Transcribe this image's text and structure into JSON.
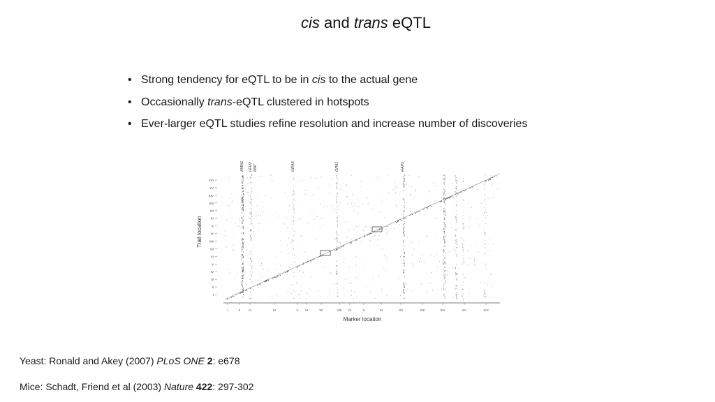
{
  "title": {
    "italic1": "cis",
    "mid": " and ",
    "italic2": "trans",
    "end": " eQTL"
  },
  "bullets": {
    "b1": {
      "pre": "Strong tendency for eQTL to be in ",
      "em": "cis",
      "post": " to the actual gene"
    },
    "b2": {
      "pre": "Occasionally ",
      "em": "trans",
      "post": "-eQTL clustered in hotspots"
    },
    "b3": {
      "text": "Ever-larger eQTL studies refine resolution and increase number of discoveries"
    }
  },
  "figure": {
    "xlabel": "Marker location",
    "ylabel": "Trait location",
    "x_ticks": [
      "I",
      "II",
      "III",
      "IV",
      "V",
      "VI",
      "VII",
      "VIII",
      "IX",
      "X",
      "XI",
      "XII",
      "XIII",
      "XIV",
      "XV",
      "XVI"
    ],
    "y_ticks": [
      "XVI",
      "XV",
      "XIV",
      "XIII",
      "XII",
      "XI",
      "X",
      "IX",
      "VIII",
      "VII",
      "VI",
      "V",
      "IV",
      "III",
      "II",
      "I"
    ],
    "gene_labels": [
      "AMN1",
      "LEU2",
      "MAT",
      "URA3",
      "GPA1",
      "HAP1"
    ]
  },
  "refs": {
    "yeast": {
      "pre": "Yeast:  Ronald and Akey (2007) ",
      "journal": "PLoS ONE",
      "vol": "2",
      "post": ": e678"
    },
    "mice": {
      "pre": "Mice:  Schadt, Friend et al (2003)  ",
      "journal": "Nature",
      "vol": "422",
      "post": ": 297-302"
    }
  }
}
